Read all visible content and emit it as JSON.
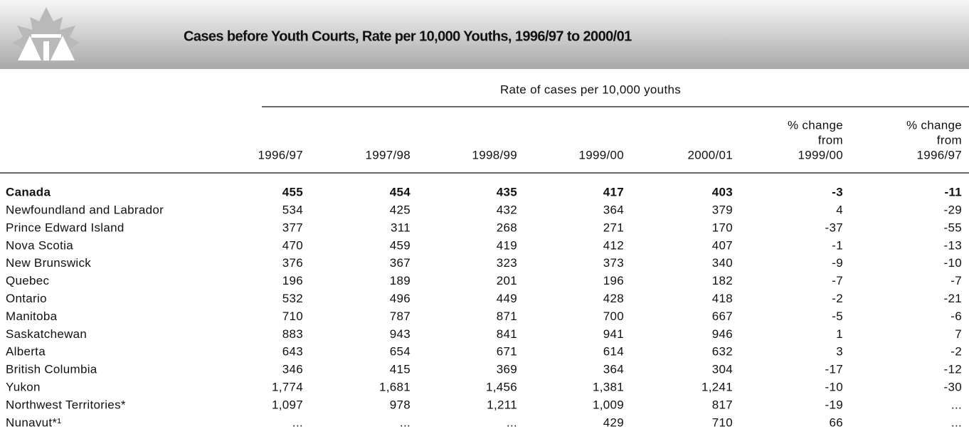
{
  "header": {
    "title": "Cases before Youth Courts, Rate per 10,000 Youths, 1996/97 to 2000/01"
  },
  "table": {
    "group_label": "Rate of cases per 10,000 youths",
    "columns": [
      [
        "1996/97"
      ],
      [
        "1997/98"
      ],
      [
        "1998/99"
      ],
      [
        "1999/00"
      ],
      [
        "2000/01"
      ],
      [
        "% change",
        "from",
        "1999/00"
      ],
      [
        "% change",
        "from",
        "1996/97"
      ]
    ],
    "rows": [
      [
        "Canada",
        "455",
        "454",
        "435",
        "417",
        "403",
        "-3",
        "-11"
      ],
      [
        "Newfoundland and Labrador",
        "534",
        "425",
        "432",
        "364",
        "379",
        "4",
        "-29"
      ],
      [
        "Prince Edward Island",
        "377",
        "311",
        "268",
        "271",
        "170",
        "-37",
        "-55"
      ],
      [
        "Nova Scotia",
        "470",
        "459",
        "419",
        "412",
        "407",
        "-1",
        "-13"
      ],
      [
        "New Brunswick",
        "376",
        "367",
        "323",
        "373",
        "340",
        "-9",
        "-10"
      ],
      [
        "Quebec",
        "196",
        "189",
        "201",
        "196",
        "182",
        "-7",
        "-7"
      ],
      [
        "Ontario",
        "532",
        "496",
        "449",
        "428",
        "418",
        "-2",
        "-21"
      ],
      [
        "Manitoba",
        "710",
        "787",
        "871",
        "700",
        "667",
        "-5",
        "-6"
      ],
      [
        "Saskatchewan",
        "883",
        "943",
        "841",
        "941",
        "946",
        "1",
        "7"
      ],
      [
        "Alberta",
        "643",
        "654",
        "671",
        "614",
        "632",
        "3",
        "-2"
      ],
      [
        "British Columbia",
        "346",
        "415",
        "369",
        "364",
        "304",
        "-17",
        "-12"
      ],
      [
        "Yukon",
        "1,774",
        "1,681",
        "1,456",
        "1,381",
        "1,241",
        "-10",
        "-30"
      ],
      [
        "Northwest Territories*",
        "1,097",
        "978",
        "1,211",
        "1,009",
        "817",
        "-19",
        "..."
      ],
      [
        "Nunavut*¹",
        "...",
        "...",
        "...",
        "429",
        "710",
        "66",
        "..."
      ]
    ]
  }
}
